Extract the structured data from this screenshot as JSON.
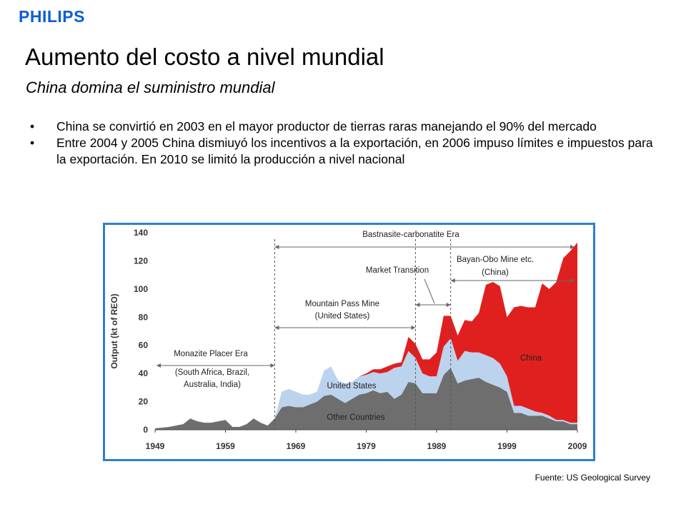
{
  "header": {
    "logo": "PHILIPS",
    "title": "Aumento del costo a nivel mundial",
    "subtitle": "China domina el suministro mundial"
  },
  "bullets": [
    "China se convirtió en 2003 en el mayor productor de tierras raras manejando el 90% del mercado",
    "Entre 2004 y 2005 China dismiuyó los incentivos a la exportación, en 2006 impuso límites e impuestos para la exportación. En 2010 se limitó la producción a nivel nacional"
  ],
  "bullet_symbol": "•",
  "source": "Fuente: US Geological Survey",
  "colors": {
    "brand": "#0b5ed7",
    "frame": "#2f7fcf",
    "china": "#e0201f",
    "united_states": "#bcd3ee",
    "other_countries": "#6e6e6e"
  },
  "chart_data": {
    "type": "area",
    "stacked": true,
    "ylabel": "Output (kt of REO)",
    "xlabel": "",
    "ylim": [
      0,
      140
    ],
    "xlim": [
      1949,
      2009
    ],
    "yticks": [
      "0",
      "20",
      "40",
      "60",
      "80",
      "100",
      "120",
      "140"
    ],
    "xticks": [
      "1949",
      "1959",
      "1969",
      "1979",
      "1989",
      "1999",
      "2009"
    ],
    "x": [
      1949,
      1951,
      1953,
      1954,
      1955,
      1956,
      1957,
      1958,
      1959,
      1960,
      1961,
      1962,
      1963,
      1964,
      1965,
      1966,
      1967,
      1968,
      1969,
      1970,
      1971,
      1972,
      1973,
      1974,
      1975,
      1976,
      1977,
      1978,
      1979,
      1980,
      1981,
      1982,
      1983,
      1984,
      1985,
      1986,
      1987,
      1988,
      1989,
      1990,
      1991,
      1992,
      1993,
      1994,
      1995,
      1996,
      1997,
      1998,
      1999,
      2000,
      2001,
      2002,
      2003,
      2004,
      2005,
      2006,
      2007,
      2008,
      2009
    ],
    "series": [
      {
        "name": "Other Countries",
        "values": [
          1,
          2,
          4,
          8,
          6,
          5,
          5,
          6,
          7,
          2,
          2,
          4,
          8,
          5,
          3,
          8,
          16,
          17,
          16,
          16,
          18,
          20,
          24,
          25,
          22,
          19,
          22,
          25,
          26,
          28,
          26,
          27,
          22,
          25,
          34,
          33,
          26,
          26,
          26,
          39,
          44,
          33,
          35,
          36,
          37,
          34,
          32,
          30,
          27,
          12,
          12,
          10,
          10,
          10,
          8,
          6,
          6,
          4,
          4
        ]
      },
      {
        "name": "United States",
        "values": [
          0,
          0,
          0,
          0,
          0,
          0,
          0,
          0,
          0,
          0,
          0,
          0,
          0,
          0,
          0,
          0,
          11,
          12,
          11,
          9,
          7,
          7,
          18,
          20,
          13,
          14,
          12,
          13,
          13,
          13,
          14,
          14,
          22,
          20,
          22,
          18,
          14,
          12,
          12,
          20,
          21,
          16,
          21,
          19,
          18,
          19,
          19,
          17,
          11,
          5,
          5,
          5,
          3,
          2,
          2,
          1,
          1,
          1,
          1
        ]
      },
      {
        "name": "China",
        "values": [
          0,
          0,
          0,
          0,
          0,
          0,
          0,
          0,
          0,
          0,
          0,
          0,
          0,
          0,
          0,
          0,
          0,
          0,
          0,
          0,
          0,
          0,
          0,
          0,
          0,
          0,
          0,
          0,
          1,
          2,
          3,
          4,
          3,
          3,
          10,
          10,
          10,
          12,
          17,
          22,
          16,
          18,
          22,
          22,
          28,
          50,
          54,
          55,
          42,
          70,
          71,
          72,
          74,
          92,
          90,
          98,
          115,
          122,
          128
        ]
      }
    ],
    "series_labels": [
      "China",
      "United States",
      "Other Countries"
    ],
    "annotations": {
      "era_bastnasite": "Bastnasite-carbonatite Era",
      "era_monazite_1": "Monazite Placer Era",
      "era_monazite_2": "(South Africa, Brazil,",
      "era_monazite_3": "Australia, India)",
      "era_mountain_1": "Mountain Pass Mine",
      "era_mountain_2": "(United States)",
      "era_transition": "Market Transition",
      "era_bayan_1": "Bayan-Obo Mine etc.",
      "era_bayan_2": "(China)"
    },
    "era_boundaries": [
      1966,
      1986,
      1991
    ]
  }
}
